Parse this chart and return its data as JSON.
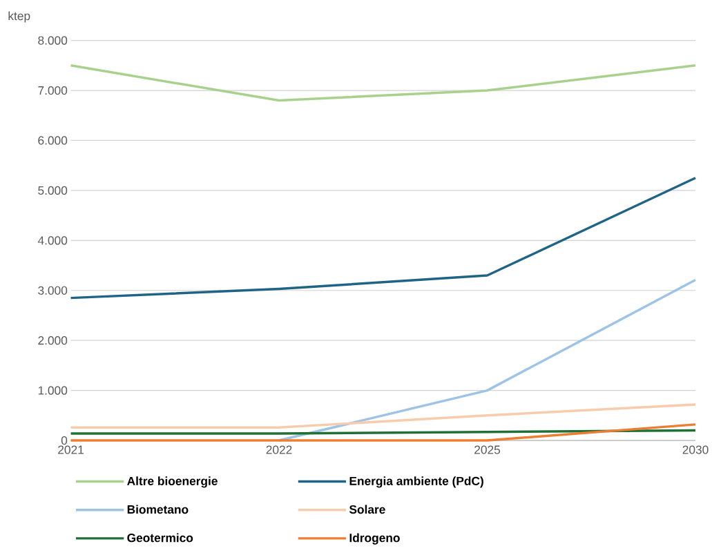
{
  "chart_data": {
    "type": "line",
    "ylabel": "ktep",
    "categories": [
      "2021",
      "2022",
      "2025",
      "2030"
    ],
    "ylim": [
      0,
      8000
    ],
    "yticks": [
      {
        "value": 0,
        "label": "0"
      },
      {
        "value": 1000,
        "label": "1.000"
      },
      {
        "value": 2000,
        "label": "2.000"
      },
      {
        "value": 3000,
        "label": "3.000"
      },
      {
        "value": 4000,
        "label": "4.000"
      },
      {
        "value": 5000,
        "label": "5.000"
      },
      {
        "value": 6000,
        "label": "6.000"
      },
      {
        "value": 7000,
        "label": "7.000"
      },
      {
        "value": 8000,
        "label": "8.000"
      }
    ],
    "grid": "y",
    "legend": "bottom",
    "marker": "none",
    "line_style": "solid",
    "series": [
      {
        "name": "Altre bioenergie",
        "color": "#a9d18e",
        "values": [
          7500,
          6800,
          7000,
          7500
        ]
      },
      {
        "name": "Energia ambiente (PdC)",
        "color": "#1f6387",
        "values": [
          2850,
          3030,
          3300,
          5250
        ]
      },
      {
        "name": "Biometano",
        "color": "#9dc3e6",
        "values": [
          null,
          0,
          1000,
          3210
        ]
      },
      {
        "name": "Solare",
        "color": "#f8cbad",
        "values": [
          260,
          260,
          500,
          720
        ]
      },
      {
        "name": "Geotermico",
        "color": "#1e7034",
        "values": [
          140,
          140,
          170,
          200
        ]
      },
      {
        "name": "Idrogeno",
        "color": "#ed7d31",
        "values": [
          0,
          0,
          0,
          320
        ]
      }
    ]
  }
}
